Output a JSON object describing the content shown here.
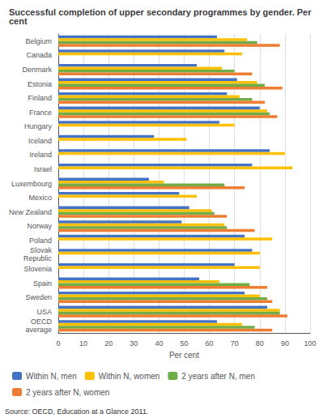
{
  "chart_data": {
    "type": "bar",
    "orientation": "horizontal",
    "title": "Successful completion of upper secondary programmes by gender. Per cent",
    "categories": [
      "Belgium",
      "Canada",
      "Denmark",
      "Estonia",
      "Finland",
      "France",
      "Hungary",
      "Iceland",
      "Ireland",
      "Israel",
      "Luxembourg",
      "Mexico",
      "New Zealand",
      "Norway",
      "Poland",
      "Slovak\nRepublic",
      "Slovenia",
      "Spain",
      "Sweden",
      "USA",
      "OECD\naverage"
    ],
    "series": [
      {
        "name": "Within N, men",
        "color": "#4472c4",
        "values": [
          63,
          66,
          55,
          71,
          67,
          80,
          64,
          38,
          84,
          77,
          36,
          48,
          52,
          49,
          74,
          77,
          70,
          56,
          74,
          83,
          63
        ]
      },
      {
        "name": "Within N, women",
        "color": "#ffc000",
        "values": [
          75,
          73,
          65,
          79,
          72,
          83,
          70,
          51,
          90,
          93,
          42,
          55,
          61,
          66,
          85,
          80,
          80,
          64,
          80,
          88,
          73
        ]
      },
      {
        "name": "2 years after N, men",
        "color": "#70ad47",
        "values": [
          79,
          null,
          70,
          82,
          77,
          84,
          null,
          null,
          null,
          null,
          66,
          null,
          62,
          67,
          null,
          null,
          null,
          76,
          83,
          88,
          78
        ]
      },
      {
        "name": "2 years after N, women",
        "color": "#ed7d31",
        "values": [
          88,
          null,
          77,
          89,
          82,
          87,
          null,
          null,
          null,
          null,
          74,
          null,
          67,
          78,
          null,
          null,
          null,
          83,
          85,
          91,
          85
        ]
      }
    ],
    "xlabel": "Per cent",
    "xlim": [
      0,
      100
    ],
    "xticks": [
      0,
      10,
      20,
      30,
      40,
      50,
      60,
      70,
      80,
      90,
      100
    ],
    "grid": true,
    "legend": "bottom",
    "annotations": [
      "Source: OECD, Education at a Glance 2011."
    ]
  }
}
